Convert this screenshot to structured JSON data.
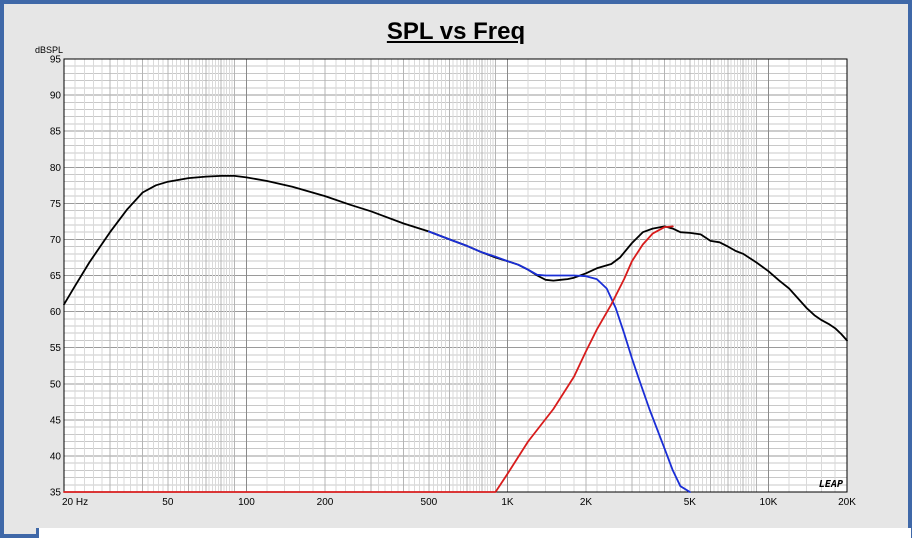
{
  "chart_data": {
    "type": "line",
    "title": "SPL vs Freq",
    "ylabel": "dBSPL",
    "xlabel": "",
    "x_scale": "log",
    "xlim": [
      20,
      20000
    ],
    "ylim": [
      35,
      95
    ],
    "y_ticks": [
      35,
      40,
      45,
      50,
      55,
      60,
      65,
      70,
      75,
      80,
      85,
      90,
      95
    ],
    "x_ticks": [
      {
        "value": 20,
        "label": "20  Hz"
      },
      {
        "value": 50,
        "label": "50"
      },
      {
        "value": 100,
        "label": "100"
      },
      {
        "value": 200,
        "label": "200"
      },
      {
        "value": 500,
        "label": "500"
      },
      {
        "value": 1000,
        "label": "1K"
      },
      {
        "value": 2000,
        "label": "2K"
      },
      {
        "value": 5000,
        "label": "5K"
      },
      {
        "value": 10000,
        "label": "10K"
      },
      {
        "value": 20000,
        "label": "20K"
      }
    ],
    "grid": true,
    "logo_text": "LEAP",
    "series": [
      {
        "color": "#000000",
        "x": [
          20,
          22,
          25,
          30,
          35,
          40,
          45,
          50,
          60,
          70,
          80,
          90,
          100,
          120,
          150,
          200,
          250,
          300,
          400,
          500,
          600,
          700,
          800,
          900,
          1000,
          1100,
          1200,
          1300,
          1400,
          1500,
          1600,
          1700,
          1800,
          1900,
          2000,
          2200,
          2500,
          2700,
          3000,
          3300,
          3600,
          4000,
          4300,
          4600,
          5000,
          5500,
          6000,
          6500,
          7000,
          7500,
          8000,
          9000,
          10000,
          11000,
          12000,
          13000,
          14000,
          15000,
          16000,
          17000,
          18000,
          19000,
          20000
        ],
        "y": [
          61,
          63.5,
          66.8,
          71,
          74.2,
          76.5,
          77.5,
          78,
          78.5,
          78.7,
          78.8,
          78.8,
          78.6,
          78.1,
          77.3,
          76,
          74.8,
          73.9,
          72.2,
          71.1,
          70,
          69.1,
          68.2,
          67.5,
          67,
          66.5,
          65.8,
          65,
          64.4,
          64.3,
          64.4,
          64.5,
          64.7,
          65,
          65.3,
          66,
          66.6,
          67.5,
          69.5,
          71,
          71.5,
          71.8,
          71.5,
          71,
          70.9,
          70.7,
          69.8,
          69.6,
          69,
          68.4,
          68,
          66.8,
          65.6,
          64.3,
          63.2,
          61.8,
          60.5,
          59.5,
          58.8,
          58.3,
          57.7,
          56.9,
          56
        ]
      },
      {
        "color": "#1a2ed6",
        "x": [
          500,
          600,
          700,
          800,
          900,
          1000,
          1100,
          1200,
          1300,
          1400,
          1600,
          1800,
          2000,
          2200,
          2400,
          2600,
          2800,
          3000,
          3200,
          3500,
          4000,
          4300,
          4600,
          5000
        ],
        "y": [
          71.1,
          70,
          69.1,
          68.2,
          67.6,
          67,
          66.5,
          65.8,
          65.1,
          65,
          65,
          65,
          64.9,
          64.5,
          63.2,
          60.5,
          57,
          53.5,
          50.5,
          46.5,
          41,
          38,
          35.8,
          35
        ]
      },
      {
        "color": "#d81c1c",
        "x": [
          20,
          900,
          1000,
          1200,
          1500,
          1800,
          2000,
          2200,
          2500,
          2800,
          3000,
          3300,
          3600,
          4000,
          4300
        ],
        "y": [
          35,
          35,
          37.5,
          42,
          46.5,
          51,
          54.5,
          57.5,
          61,
          64.5,
          67,
          69.3,
          70.8,
          71.7,
          71.8
        ]
      }
    ]
  }
}
